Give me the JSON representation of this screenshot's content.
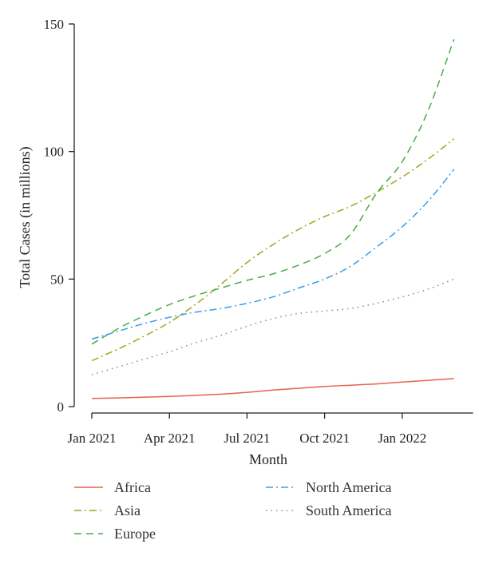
{
  "chart_data": {
    "type": "line",
    "title": "",
    "xlabel": "Month",
    "ylabel": "Total Cases (in millions)",
    "x_ticks": [
      "Jan 2021",
      "Apr 2021",
      "Jul 2021",
      "Oct 2021",
      "Jan 2022"
    ],
    "x_tick_positions": [
      0,
      3,
      6,
      9,
      12
    ],
    "x": [
      "Jan 2021",
      "Feb 2021",
      "Mar 2021",
      "Apr 2021",
      "May 2021",
      "Jun 2021",
      "Jul 2021",
      "Aug 2021",
      "Sep 2021",
      "Oct 2021",
      "Nov 2021",
      "Dec 2021",
      "Jan 2022",
      "Feb 2022",
      "Mar 2022"
    ],
    "xlim": [
      "Jan 2021",
      "Mar 2022"
    ],
    "ylim": [
      0,
      150
    ],
    "y_ticks": [
      0,
      50,
      100,
      150
    ],
    "grid": false,
    "legend_position": "bottom",
    "series": [
      {
        "name": "Africa",
        "color": "#e8614d",
        "dash": "solid",
        "values": [
          3.2,
          3.4,
          3.7,
          4.0,
          4.4,
          4.9,
          5.6,
          6.5,
          7.2,
          7.9,
          8.4,
          8.9,
          9.6,
          10.3,
          11.0
        ]
      },
      {
        "name": "Asia",
        "color": "#9aaa19",
        "dash": "dashdot",
        "values": [
          18.0,
          22.5,
          27.5,
          33.0,
          40.0,
          48.0,
          56.5,
          63.5,
          69.5,
          74.5,
          78.5,
          84.0,
          90.0,
          97.0,
          105.0
        ]
      },
      {
        "name": "Europe",
        "color": "#4aaa4a",
        "dash": "dashed",
        "values": [
          24.5,
          30.5,
          35.5,
          40.0,
          43.5,
          46.5,
          49.5,
          52.0,
          55.5,
          60.0,
          67.5,
          83.5,
          96.0,
          116.0,
          144.0
        ]
      },
      {
        "name": "North America",
        "color": "#3a9ee6",
        "dash": "dashdot",
        "values": [
          26.5,
          29.5,
          32.5,
          35.0,
          37.0,
          38.5,
          40.5,
          43.0,
          46.5,
          50.0,
          55.0,
          62.5,
          70.5,
          80.5,
          93.0
        ]
      },
      {
        "name": "South America",
        "color": "#8a8a8a",
        "dash": "dotted",
        "values": [
          12.5,
          15.5,
          18.5,
          21.5,
          25.0,
          28.0,
          31.5,
          34.5,
          36.5,
          37.5,
          38.5,
          40.5,
          43.0,
          46.0,
          50.0
        ]
      }
    ]
  }
}
